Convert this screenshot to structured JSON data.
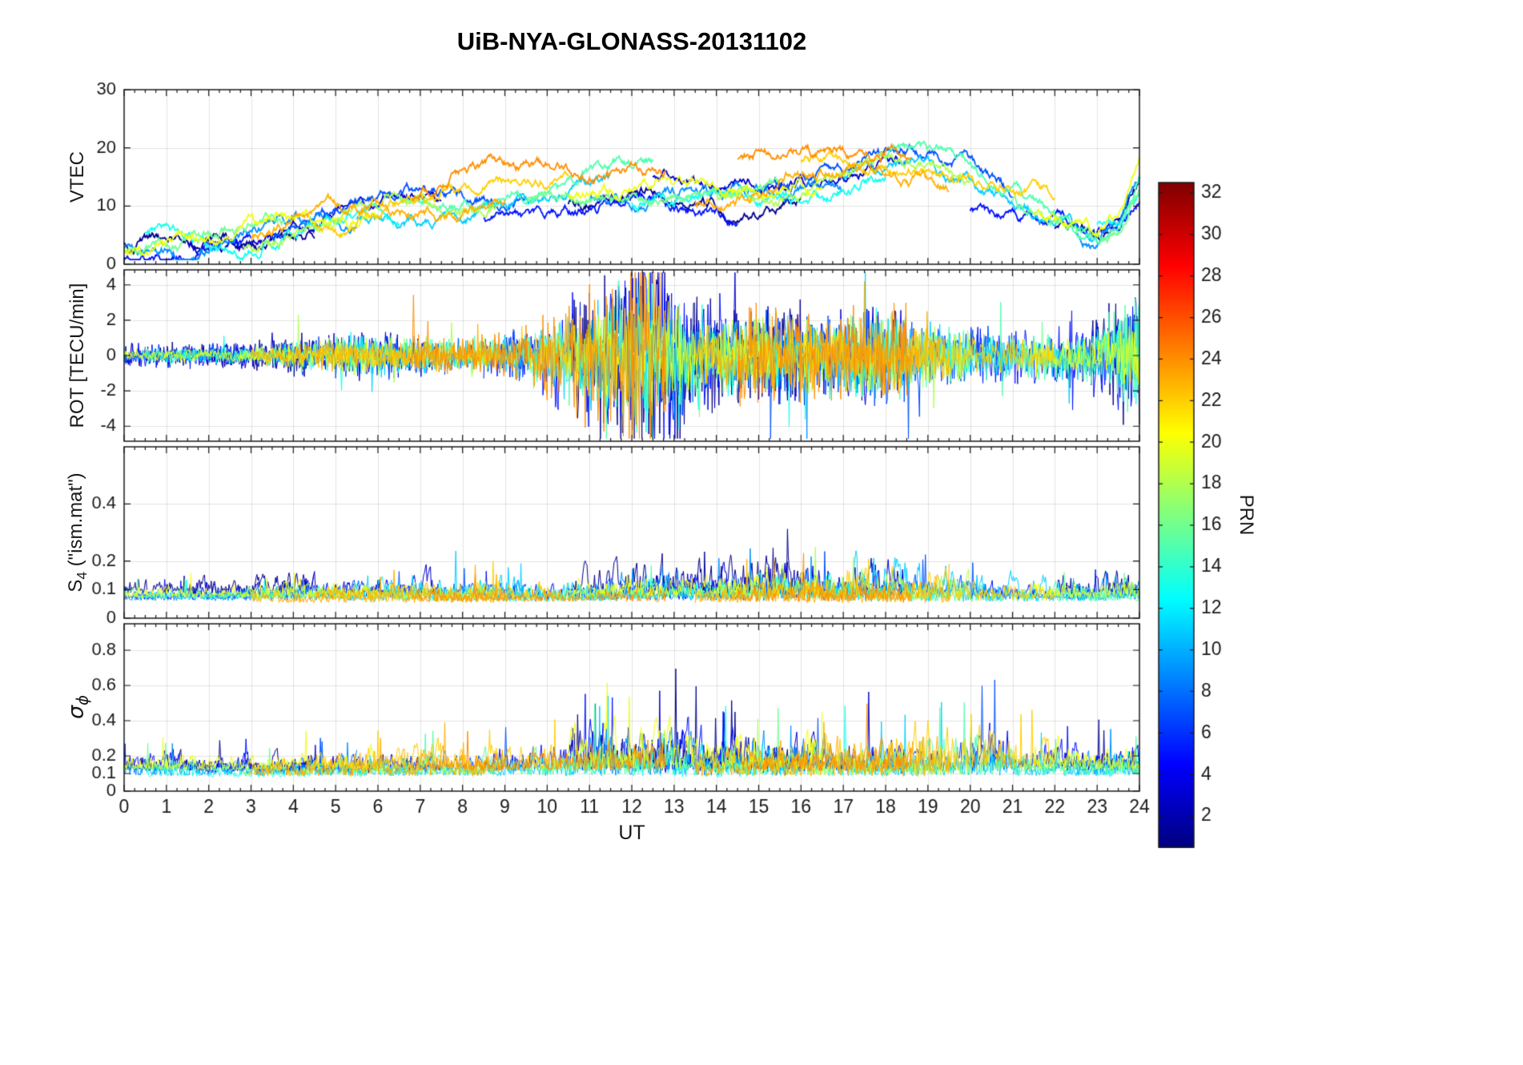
{
  "figure": {
    "title": "UiB-NYA-GLONASS-20131102",
    "xlabel": "UT",
    "background": "#ffffff",
    "axis_color": "#1a1a1a",
    "grid_color": "rgba(38,38,38,0.13)"
  },
  "colorbar": {
    "label": "PRN",
    "colormap": "jet",
    "range": [
      0.5,
      32.5
    ],
    "ticks": [
      2,
      4,
      6,
      8,
      10,
      12,
      14,
      16,
      18,
      20,
      22,
      24,
      26,
      28,
      30,
      32
    ]
  },
  "x_axis": {
    "range": [
      0,
      24
    ],
    "ticks": [
      0,
      1,
      2,
      3,
      4,
      5,
      6,
      7,
      8,
      9,
      10,
      11,
      12,
      13,
      14,
      15,
      16,
      17,
      18,
      19,
      20,
      21,
      22,
      23,
      24
    ],
    "minor_step": 0.25
  },
  "chart_data": [
    {
      "type": "line",
      "id": "vtec",
      "ylabel": "VTEC",
      "ylim": [
        0,
        30
      ],
      "yticks": [
        0,
        10,
        20,
        30
      ],
      "x_range": [
        0,
        24
      ],
      "clamp": [
        0.8,
        29
      ],
      "base_curve": [
        [
          0,
          3.5
        ],
        [
          1,
          3.8
        ],
        [
          2,
          4
        ],
        [
          3,
          5
        ],
        [
          4,
          6.5
        ],
        [
          5,
          7.5
        ],
        [
          6,
          8.5
        ],
        [
          7,
          9
        ],
        [
          8,
          10
        ],
        [
          9,
          11
        ],
        [
          10,
          12
        ],
        [
          11,
          13
        ],
        [
          12,
          13.5
        ],
        [
          13,
          12.5
        ],
        [
          14,
          11.5
        ],
        [
          15,
          12
        ],
        [
          16,
          14
        ],
        [
          17,
          15.5
        ],
        [
          18,
          16
        ],
        [
          19,
          15.5
        ],
        [
          20,
          13.5
        ],
        [
          21,
          11
        ],
        [
          22,
          8.5
        ],
        [
          23,
          5.5
        ],
        [
          23.5,
          7
        ],
        [
          24,
          15
        ]
      ]
    },
    {
      "type": "line",
      "id": "rot",
      "ylabel": "ROT [TECU/min]",
      "ylim": [
        -4.85,
        4.85
      ],
      "yticks": [
        -4,
        -2,
        0,
        2,
        4
      ],
      "x_range": [
        0,
        24
      ],
      "amplitude_curve": [
        [
          0,
          0.35
        ],
        [
          3,
          0.4
        ],
        [
          4,
          0.6
        ],
        [
          5,
          0.75
        ],
        [
          6,
          0.8
        ],
        [
          7,
          0.7
        ],
        [
          8,
          0.65
        ],
        [
          9,
          0.75
        ],
        [
          10,
          1.3
        ],
        [
          10.5,
          1.9
        ],
        [
          11,
          2.3
        ],
        [
          11.5,
          2.7
        ],
        [
          12,
          3.1
        ],
        [
          12.5,
          3.3
        ],
        [
          13,
          3.3
        ],
        [
          13.5,
          2.1
        ],
        [
          14,
          1.5
        ],
        [
          15,
          1.6
        ],
        [
          16,
          1.55
        ],
        [
          17,
          1.7
        ],
        [
          18,
          1.8
        ],
        [
          19,
          1.3
        ],
        [
          20,
          1.0
        ],
        [
          21,
          0.85
        ],
        [
          22,
          0.95
        ],
        [
          23,
          1.15
        ],
        [
          23.5,
          1.9
        ],
        [
          24,
          2.3
        ]
      ]
    },
    {
      "type": "line",
      "id": "s4",
      "ylabel_parts": {
        "main": "S",
        "sub": "4",
        "suffix": " (\"ism.mat\")"
      },
      "ylim": [
        0,
        0.6
      ],
      "yticks": [
        0,
        0.1,
        0.2,
        0.4
      ],
      "x_range": [
        0,
        24
      ],
      "base_range": [
        0.05,
        0.09
      ],
      "amplitude_curve": [
        [
          0,
          0.035
        ],
        [
          2,
          0.03
        ],
        [
          4,
          0.04
        ],
        [
          6,
          0.045
        ],
        [
          8,
          0.05
        ],
        [
          9,
          0.055
        ],
        [
          10,
          0.045
        ],
        [
          11,
          0.05
        ],
        [
          12,
          0.06
        ],
        [
          13,
          0.065
        ],
        [
          14,
          0.06
        ],
        [
          15,
          0.07
        ],
        [
          16,
          0.075
        ],
        [
          17,
          0.08
        ],
        [
          18,
          0.075
        ],
        [
          19,
          0.07
        ],
        [
          20,
          0.06
        ],
        [
          21,
          0.05
        ],
        [
          22,
          0.045
        ],
        [
          23,
          0.04
        ],
        [
          24,
          0.055
        ]
      ]
    },
    {
      "type": "line",
      "id": "sigma_phi",
      "ylabel_parts": {
        "sym": "σ",
        "sub": "ϕ"
      },
      "ylim": [
        0,
        0.95
      ],
      "yticks": [
        0,
        0.1,
        0.2,
        0.4,
        0.6,
        0.8
      ],
      "x_range": [
        0,
        24
      ],
      "base_range": [
        0.08,
        0.13
      ],
      "amplitude_curve": [
        [
          0,
          0.05
        ],
        [
          1,
          0.07
        ],
        [
          2,
          0.05
        ],
        [
          3,
          0.05
        ],
        [
          4,
          0.06
        ],
        [
          5,
          0.07
        ],
        [
          6,
          0.08
        ],
        [
          7,
          0.08
        ],
        [
          8,
          0.085
        ],
        [
          9,
          0.085
        ],
        [
          10,
          0.1
        ],
        [
          11,
          0.15
        ],
        [
          11.5,
          0.17
        ],
        [
          12,
          0.16
        ],
        [
          12.5,
          0.15
        ],
        [
          13,
          0.17
        ],
        [
          13.5,
          0.13
        ],
        [
          14,
          0.11
        ],
        [
          15,
          0.13
        ],
        [
          16,
          0.12
        ],
        [
          17,
          0.12
        ],
        [
          18,
          0.13
        ],
        [
          19,
          0.15
        ],
        [
          19.5,
          0.16
        ],
        [
          20,
          0.14
        ],
        [
          20.5,
          0.2
        ],
        [
          21,
          0.11
        ],
        [
          22,
          0.09
        ],
        [
          23,
          0.08
        ],
        [
          24,
          0.09
        ]
      ]
    }
  ],
  "satellites": [
    {
      "prn": 1,
      "arcs": [
        [
          0,
          4.5
        ],
        [
          10.5,
          16
        ],
        [
          22,
          24
        ]
      ],
      "vtec_scale": 0.9,
      "vtec_offset": -0.5,
      "wobble_amp": 1.5,
      "wobble_freq": 1.1,
      "phase": 0.5,
      "seed": 1007
    },
    {
      "prn": 3,
      "arcs": [
        [
          1.5,
          7.5
        ],
        [
          12.5,
          18.5
        ]
      ],
      "vtec_scale": 1.05,
      "vtec_offset": 0.3,
      "wobble_amp": 1.8,
      "wobble_freq": 0.9,
      "phase": 2.1,
      "seed": 3007
    },
    {
      "prn": 5,
      "arcs": [
        [
          0,
          3
        ],
        [
          8.5,
          14.5
        ],
        [
          20,
          24
        ]
      ],
      "vtec_scale": 0.8,
      "vtec_offset": -0.8,
      "wobble_amp": 1.2,
      "wobble_freq": 1.3,
      "phase": 4.0,
      "seed": 5007
    },
    {
      "prn": 7,
      "arcs": [
        [
          3.5,
          9.5
        ],
        [
          15,
          21
        ]
      ],
      "vtec_scale": 1.1,
      "vtec_offset": 0.5,
      "wobble_amp": 2.0,
      "wobble_freq": 1.0,
      "phase": 1.2,
      "seed": 7007
    },
    {
      "prn": 9,
      "arcs": [
        [
          0,
          5.5
        ],
        [
          11,
          17
        ],
        [
          22.5,
          24
        ]
      ],
      "vtec_scale": 0.95,
      "vtec_offset": 0,
      "wobble_amp": 1.6,
      "wobble_freq": 1.2,
      "phase": 3.3,
      "seed": 9007
    },
    {
      "prn": 11,
      "arcs": [
        [
          5.5,
          11.5
        ],
        [
          17,
          23
        ]
      ],
      "vtec_scale": 1.0,
      "vtec_offset": -0.3,
      "wobble_amp": 1.4,
      "wobble_freq": 0.8,
      "phase": 5.1,
      "seed": 11007
    },
    {
      "prn": 13,
      "arcs": [
        [
          0.5,
          6.5
        ],
        [
          12,
          18
        ],
        [
          23,
          24
        ]
      ],
      "vtec_scale": 0.85,
      "vtec_offset": 0.4,
      "wobble_amp": 1.7,
      "wobble_freq": 1.4,
      "phase": 0.9,
      "seed": 13007
    },
    {
      "prn": 15,
      "arcs": [
        [
          6.5,
          12.5
        ],
        [
          18,
          24
        ]
      ],
      "vtec_scale": 1.15,
      "vtec_offset": -0.2,
      "wobble_amp": 2.2,
      "wobble_freq": 0.9,
      "phase": 2.8,
      "seed": 15007
    },
    {
      "prn": 16,
      "arcs": [
        [
          0,
          3.8
        ],
        [
          9.5,
          15.5
        ],
        [
          21,
          24
        ]
      ],
      "vtec_scale": 0.9,
      "vtec_offset": 0.6,
      "wobble_amp": 1.5,
      "wobble_freq": 1.1,
      "phase": 4.6,
      "seed": 16007
    },
    {
      "prn": 18,
      "arcs": [
        [
          2.8,
          8.8
        ],
        [
          14,
          20
        ]
      ],
      "vtec_scale": 1.05,
      "vtec_offset": -0.4,
      "wobble_amp": 1.9,
      "wobble_freq": 1.0,
      "phase": 1.7,
      "seed": 18007
    },
    {
      "prn": 20,
      "arcs": [
        [
          0,
          6
        ],
        [
          10.5,
          16.5
        ],
        [
          21.5,
          24
        ]
      ],
      "vtec_scale": 1.0,
      "vtec_offset": 0.2,
      "wobble_amp": 1.6,
      "wobble_freq": 1.2,
      "phase": 3.9,
      "seed": 20007
    },
    {
      "prn": 22,
      "arcs": [
        [
          4.5,
          10.5
        ],
        [
          16,
          22
        ]
      ],
      "vtec_scale": 1.1,
      "vtec_offset": 0.8,
      "wobble_amp": 2.1,
      "wobble_freq": 0.9,
      "phase": 0.3,
      "seed": 22007
    },
    {
      "prn": 23,
      "arcs": [
        [
          3,
          9
        ],
        [
          13.5,
          19.5
        ]
      ],
      "vtec_scale": 0.95,
      "vtec_offset": 1.0,
      "wobble_amp": 1.8,
      "wobble_freq": 1.1,
      "phase": 2.4,
      "seed": 23007
    },
    {
      "prn": 24,
      "arcs": [
        [
          6.8,
          12.8
        ],
        [
          14.5,
          18.6
        ]
      ],
      "vtec_scale": 1.2,
      "vtec_offset": 1.5,
      "wobble_amp": 2.3,
      "wobble_freq": 1.0,
      "phase": 5.6,
      "seed": 24007
    }
  ]
}
